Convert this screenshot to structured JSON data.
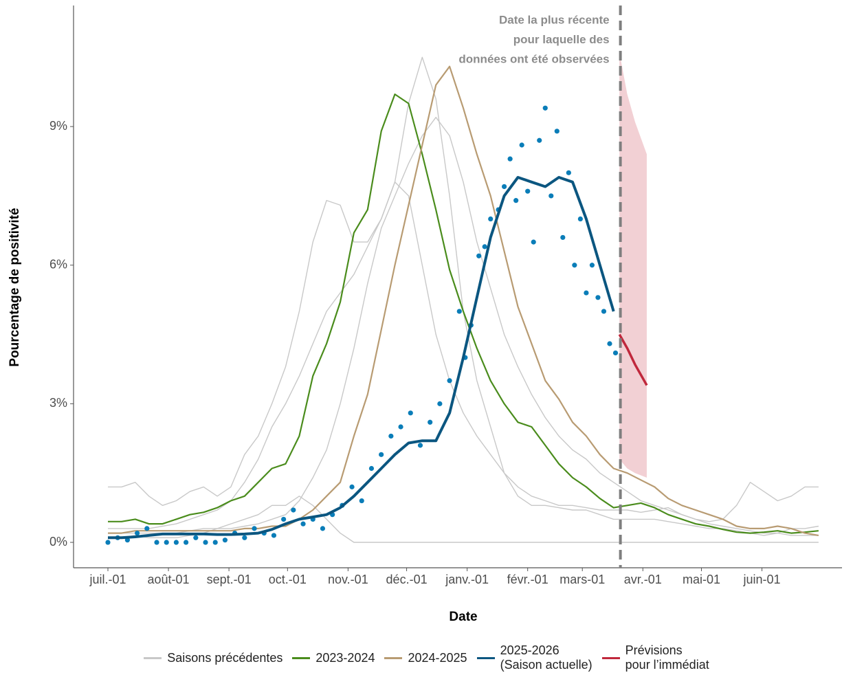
{
  "chart_data": {
    "type": "line",
    "x_label": "Date",
    "y_label": "Pourcentage de positivité",
    "xlim": [
      -17.6,
      376
    ],
    "ylim": [
      -0.55,
      11.62
    ],
    "xticks": [
      {
        "value": 0,
        "label": "juil.-01"
      },
      {
        "value": 31,
        "label": "août-01"
      },
      {
        "value": 62,
        "label": "sept.-01"
      },
      {
        "value": 92,
        "label": "oct.-01"
      },
      {
        "value": 123,
        "label": "nov.-01"
      },
      {
        "value": 153,
        "label": "déc.-01"
      },
      {
        "value": 184,
        "label": "janv.-01"
      },
      {
        "value": 215,
        "label": "févr.-01"
      },
      {
        "value": 243,
        "label": "mars-01"
      },
      {
        "value": 274,
        "label": "avr.-01"
      },
      {
        "value": 304,
        "label": "mai-01"
      },
      {
        "value": 335,
        "label": "juin-01"
      }
    ],
    "yticks": [
      {
        "value": 0,
        "label": "0%"
      },
      {
        "value": 3,
        "label": "3%"
      },
      {
        "value": 6,
        "label": "6%"
      },
      {
        "value": 9,
        "label": "9%"
      }
    ],
    "grid": false,
    "legend": "bottom",
    "cutoff": {
      "x": 262.5,
      "annotation": [
        "Date la plus récente",
        "pour laquelle des",
        "données ont été observées"
      ]
    },
    "x": [
      0,
      7,
      14,
      21,
      28,
      35,
      42,
      49,
      56,
      63,
      70,
      77,
      84,
      91,
      98,
      105,
      112,
      119,
      126,
      133,
      140,
      147,
      154,
      161,
      168,
      175,
      182,
      189,
      196,
      203,
      210,
      217,
      224,
      231,
      238,
      245,
      252,
      259,
      266,
      273,
      280,
      287,
      294,
      301,
      308,
      315,
      322,
      329,
      336,
      343,
      350,
      357,
      364
    ],
    "series": [
      {
        "name": "Saisons précédentes",
        "color": "#c8c8c8",
        "lines": [
          [
            1.2,
            1.2,
            1.3,
            1.0,
            0.8,
            0.9,
            1.1,
            1.2,
            1.0,
            1.2,
            1.9,
            2.3,
            3.0,
            3.8,
            5.0,
            6.5,
            7.4,
            7.3,
            6.5,
            6.5,
            7.0,
            7.8,
            7.5,
            6.0,
            4.5,
            3.5,
            2.8,
            2.3,
            1.9,
            1.5,
            1.2,
            1.0,
            0.9,
            0.8,
            0.8,
            0.75,
            0.7,
            0.7,
            0.7,
            0.65,
            0.7,
            0.75,
            0.6,
            0.5,
            0.45,
            0.5,
            0.8,
            1.3,
            1.1,
            0.9,
            1.0,
            1.2,
            1.2
          ],
          [
            0.3,
            0.3,
            0.3,
            0.3,
            0.35,
            0.4,
            0.5,
            0.6,
            0.7,
            0.9,
            1.3,
            1.8,
            2.5,
            3.0,
            3.6,
            4.3,
            5.0,
            5.4,
            5.8,
            6.4,
            7.0,
            7.8,
            9.5,
            10.5,
            9.6,
            7.5,
            5.0,
            3.5,
            2.5,
            1.5,
            1.0,
            0.8,
            0.8,
            0.75,
            0.7,
            0.7,
            0.6,
            0.5,
            0.5,
            0.5,
            0.5,
            0.45,
            0.4,
            0.35,
            0.3,
            0.3,
            0.25,
            0.2,
            0.15,
            0.2,
            0.3,
            0.3,
            0.35
          ],
          [
            0.2,
            0.2,
            0.2,
            0.2,
            0.2,
            0.2,
            0.25,
            0.3,
            0.3,
            0.3,
            0.35,
            0.4,
            0.5,
            0.6,
            0.9,
            1.4,
            2.0,
            3.0,
            4.2,
            5.6,
            6.8,
            7.5,
            8.2,
            8.8,
            9.2,
            8.8,
            7.8,
            6.5,
            5.5,
            4.5,
            3.8,
            3.2,
            2.7,
            2.3,
            2.0,
            1.8,
            1.5,
            1.3,
            1.1,
            0.9,
            0.8,
            0.7,
            0.6,
            0.5,
            0.4,
            0.35,
            0.3,
            0.25,
            0.2,
            0.2,
            0.15,
            0.15,
            0.15
          ],
          [
            0.1,
            0.1,
            0.15,
            0.1,
            0.1,
            0.1,
            0.15,
            0.2,
            0.3,
            0.4,
            0.5,
            0.6,
            0.8,
            0.8,
            1.0,
            0.8,
            0.5,
            0.2,
            0,
            0,
            0,
            0,
            0,
            0,
            0,
            0,
            0,
            0,
            0,
            0,
            0,
            0,
            0,
            0,
            0,
            0,
            0,
            0,
            0,
            0,
            0,
            0,
            0,
            0,
            0,
            0,
            0,
            0,
            0,
            0,
            0,
            0,
            0
          ]
        ]
      },
      {
        "name": "2023-2024",
        "color": "#4a8c1c",
        "values": [
          0.45,
          0.45,
          0.5,
          0.4,
          0.4,
          0.5,
          0.6,
          0.65,
          0.75,
          0.9,
          1.0,
          1.3,
          1.6,
          1.7,
          2.3,
          3.6,
          4.3,
          5.2,
          6.7,
          7.2,
          8.9,
          9.7,
          9.5,
          8.4,
          7.2,
          5.9,
          5.0,
          4.2,
          3.5,
          3.0,
          2.6,
          2.5,
          2.1,
          1.7,
          1.4,
          1.2,
          0.95,
          0.75,
          0.8,
          0.85,
          0.75,
          0.6,
          0.5,
          0.4,
          0.35,
          0.28,
          0.22,
          0.2,
          0.22,
          0.25,
          0.2,
          0.22,
          0.25
        ]
      },
      {
        "name": "2024-2025",
        "color": "#b89b72",
        "values": [
          0.2,
          0.2,
          0.25,
          0.25,
          0.25,
          0.25,
          0.25,
          0.25,
          0.25,
          0.25,
          0.3,
          0.3,
          0.35,
          0.35,
          0.5,
          0.7,
          1.0,
          1.3,
          2.3,
          3.2,
          4.6,
          6.0,
          7.3,
          8.6,
          9.9,
          10.3,
          9.4,
          8.4,
          7.5,
          6.3,
          5.1,
          4.3,
          3.5,
          3.1,
          2.6,
          2.3,
          1.9,
          1.6,
          1.5,
          1.35,
          1.2,
          0.95,
          0.8,
          0.7,
          0.6,
          0.5,
          0.35,
          0.3,
          0.3,
          0.35,
          0.3,
          0.2,
          0.15
        ]
      },
      {
        "name": "2025-2026\n(Saison actuelle)",
        "color": "#0b5680",
        "values": [
          0.1,
          0.1,
          0.12,
          0.15,
          0.18,
          0.18,
          0.18,
          0.18,
          0.17,
          0.17,
          0.18,
          0.2,
          0.28,
          0.4,
          0.5,
          0.55,
          0.6,
          0.75,
          1.0,
          1.3,
          1.6,
          1.9,
          2.15,
          2.2,
          2.2,
          2.8,
          4.0,
          5.3,
          6.6,
          7.5,
          7.9,
          7.8,
          7.7,
          7.9,
          7.8,
          7.0,
          6.0,
          5.0,
          null,
          null,
          null,
          null,
          null,
          null,
          null,
          null,
          null,
          null,
          null,
          null,
          null,
          null,
          null
        ],
        "observations": {
          "color": "#0a7db8",
          "x": [
            0,
            5,
            10,
            15,
            20,
            25,
            30,
            35,
            40,
            45,
            50,
            55,
            60,
            65,
            70,
            75,
            80,
            85,
            90,
            95,
            100,
            105,
            110,
            115,
            120,
            125,
            130,
            135,
            140,
            145,
            150,
            155,
            160,
            165,
            170,
            175,
            180,
            183,
            186,
            190,
            193,
            196,
            200,
            203,
            206,
            209,
            212,
            215,
            218,
            221,
            224,
            227,
            230,
            233,
            236,
            239,
            242,
            245,
            248,
            251,
            254,
            257,
            260
          ],
          "values": [
            0,
            0.1,
            0.05,
            0.2,
            0.3,
            0,
            0,
            0,
            0,
            0.1,
            0,
            0,
            0.05,
            0.2,
            0.1,
            0.3,
            0.2,
            0.15,
            0.5,
            0.7,
            0.4,
            0.5,
            0.3,
            0.6,
            0.8,
            1.2,
            0.9,
            1.6,
            1.9,
            2.3,
            2.5,
            2.8,
            2.1,
            2.6,
            3.0,
            3.5,
            5.0,
            4.0,
            4.7,
            6.2,
            6.4,
            7.0,
            7.2,
            7.7,
            8.3,
            7.4,
            8.6,
            7.6,
            6.5,
            8.7,
            9.4,
            7.5,
            8.9,
            6.6,
            8.0,
            6.0,
            7.0,
            5.4,
            6.0,
            5.3,
            5.0,
            4.3,
            4.1
          ]
        }
      },
      {
        "name": "Prévisions\npour l’immédiat",
        "color": "#c0283c",
        "band_color": "#f2d0d4",
        "x": [
          262,
          266,
          270,
          276
        ],
        "values": [
          4.5,
          4.2,
          3.85,
          3.4
        ],
        "upper": [
          10.6,
          9.7,
          9.1,
          8.4
        ],
        "lower": [
          1.8,
          1.6,
          1.5,
          1.4
        ]
      }
    ]
  }
}
